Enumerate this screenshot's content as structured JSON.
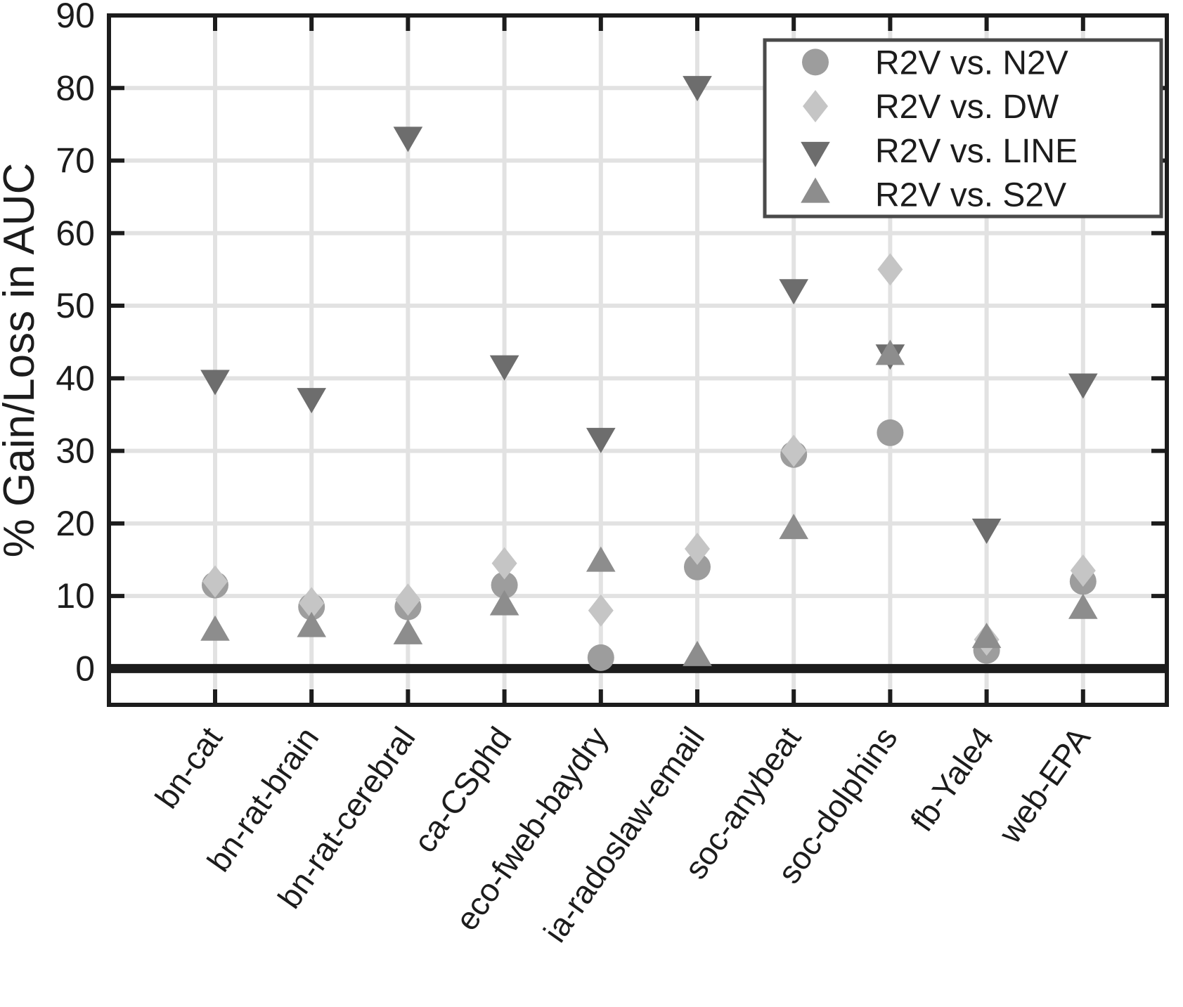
{
  "chart_data": {
    "type": "scatter",
    "title": "",
    "xlabel": "",
    "ylabel": "% Gain/Loss in AUC",
    "ylim": [
      -5,
      90
    ],
    "yticks": [
      0,
      10,
      20,
      30,
      40,
      50,
      60,
      70,
      80,
      90
    ],
    "grid": true,
    "zero_line": true,
    "legend_position": "upper right",
    "categories": [
      "bn-cat",
      "bn-rat-brain",
      "bn-rat-cerebral",
      "ca-CSphd",
      "eco-fweb-baydry",
      "ia-radoslaw-email",
      "soc-anybeat",
      "soc-dolphins",
      "fb-Yale4",
      "web-EPA"
    ],
    "series": [
      {
        "name": "R2V vs. N2V",
        "marker": "circle",
        "color": "#9d9d9d",
        "values": [
          11.5,
          8.5,
          8.5,
          11.5,
          1.5,
          14,
          29.5,
          32.5,
          2.5,
          12
        ]
      },
      {
        "name": "R2V vs. DW",
        "marker": "diamond",
        "color": "#c5c5c5",
        "values": [
          12,
          9,
          9.5,
          14.5,
          8,
          16.5,
          30,
          55,
          4,
          13.5
        ]
      },
      {
        "name": "R2V vs. LINE",
        "marker": "triangle-down",
        "color": "#6d6d6d",
        "values": [
          40,
          37.5,
          73.5,
          42,
          32,
          80.5,
          52.5,
          43.5,
          19.5,
          39.5
        ]
      },
      {
        "name": "R2V vs. S2V",
        "marker": "triangle-up",
        "color": "#8d8d8d",
        "values": [
          5,
          5.5,
          4.5,
          8.5,
          14.5,
          1.5,
          19,
          43,
          4,
          8
        ]
      }
    ]
  },
  "colors": {
    "background": "#ffffff",
    "grid": "#e2e2e2",
    "axis": "#1c1c1c",
    "text": "#1c1c1c",
    "zero_line": "#1c1c1c",
    "legend_border": "#4a4a4a",
    "legend_background": "#ffffff"
  }
}
